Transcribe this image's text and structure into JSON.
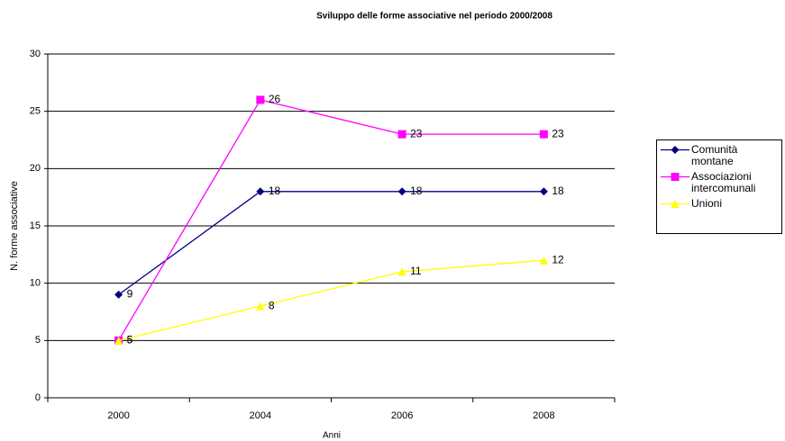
{
  "chart_data": {
    "type": "line",
    "title": "Sviluppo delle forme associative    nel periodo 2000/2008",
    "x_label": "Anni",
    "y_label": "N. forme associative",
    "categories": [
      "2000",
      "2004",
      "2006",
      "2008"
    ],
    "series": [
      {
        "name": "Comunità montane",
        "color": "#000080",
        "marker": "diamond",
        "values": [
          9,
          18,
          18,
          18
        ]
      },
      {
        "name": "Associazioni intercomunali",
        "color": "#ff00ff",
        "marker": "square",
        "values": [
          5,
          26,
          23,
          23
        ]
      },
      {
        "name": "Unioni",
        "color": "#ffff00",
        "marker": "triangle",
        "values": [
          5,
          8,
          11,
          12
        ]
      }
    ],
    "ylim": [
      0,
      30
    ],
    "yticks": [
      0,
      5,
      10,
      15,
      20,
      25,
      30
    ],
    "grid": true,
    "legend": "right"
  }
}
